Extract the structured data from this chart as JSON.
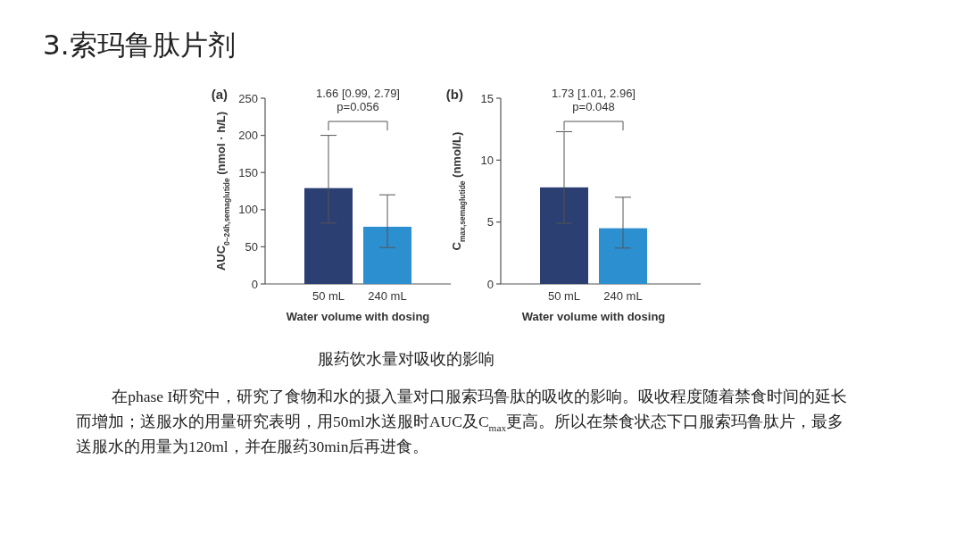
{
  "chart_data": [
    {
      "type": "other",
      "title": "3.索玛鲁肽片剂",
      "annotations": [
        "服药饮水量对吸收的影响",
        "在phase I研究中，研究了食物和水的摄入量对口服索玛鲁肽的吸收的影响。吸收程度随着禁食时间的延长而增加；送服水的用量研究表明，用50ml水送服时AUC及C$_{max}$更高。所以在禁食状态下口服索玛鲁肽片，最多送服水的用量为120ml，并在服药30min后再进食。"
      ]
    },
    {
      "type": "bar",
      "title": "(a)",
      "xlabel": "Water volume with dosing",
      "ylabel": "AUC$_{0–24h,semaglutide}$ (nmol · h/L)",
      "categories": [
        "50 mL",
        "240 mL"
      ],
      "values": [
        129,
        77
      ],
      "colors": [
        "#2b3f73",
        "#2b8fd0"
      ],
      "errors": [
        [
          82,
          200
        ],
        [
          49,
          120
        ]
      ],
      "ylim": [
        0,
        250
      ],
      "yticks": [
        0,
        50,
        100,
        150,
        200,
        250
      ],
      "annotations": [
        "1.66 [0.99, 2.79]",
        "p=0.056"
      ]
    },
    {
      "type": "bar",
      "title": "(b)",
      "xlabel": "Water volume with dosing",
      "ylabel": "C$_{max,semaglutide}$ (nmol/L)",
      "categories": [
        "50 mL",
        "240 mL"
      ],
      "values": [
        7.8,
        4.5
      ],
      "colors": [
        "#2b3f73",
        "#2b8fd0"
      ],
      "errors": [
        [
          4.9,
          12.3
        ],
        [
          2.9,
          7.0
        ]
      ],
      "ylim": [
        0,
        15
      ],
      "yticks": [
        0,
        5,
        10,
        15
      ],
      "annotations": [
        "1.73 [1.01, 2.96]",
        "p=0.048"
      ]
    }
  ]
}
